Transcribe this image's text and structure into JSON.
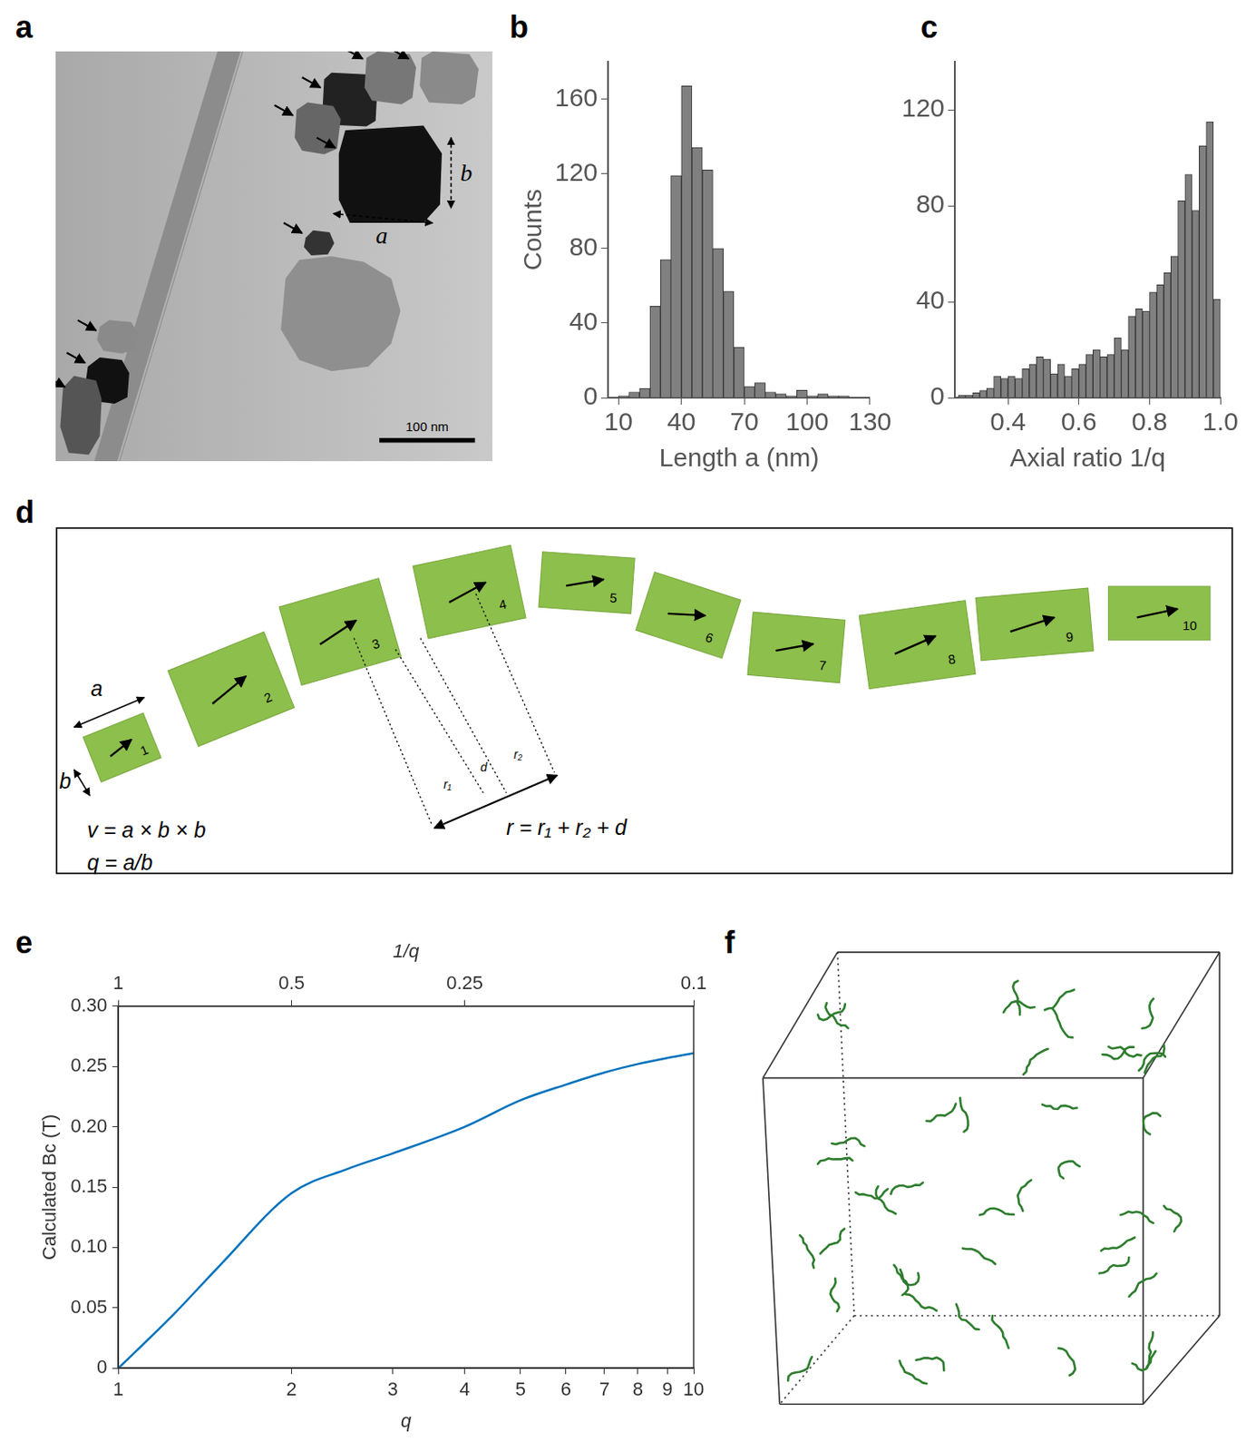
{
  "panels": {
    "a": {
      "panel_label": "a",
      "annotations": [
        "a",
        "b"
      ],
      "scale_bar": "100 nm"
    },
    "d": {
      "panel_label": "d",
      "particle_labels": [
        "1",
        "2",
        "3",
        "4",
        "5",
        "6",
        "7",
        "8",
        "9",
        "10"
      ],
      "dimension_labels": [
        "a",
        "b"
      ],
      "equations": [
        "v = a × b × b",
        "q = a/b"
      ],
      "distance_labels": [
        "r₁",
        "d",
        "r₂"
      ],
      "distance_equation": "r = r₁ + r₂ + d"
    },
    "f": {
      "panel_label": "f"
    }
  },
  "chart_data": [
    {
      "panel_label": "b",
      "type": "histogram",
      "x_label": "Length a (nm)",
      "y_label": "Counts",
      "bins": [
        10,
        15,
        20,
        25,
        30,
        35,
        40,
        45,
        50,
        55,
        60,
        65,
        70,
        75,
        80,
        85,
        90,
        95,
        100,
        105,
        110,
        115,
        120
      ],
      "counts": [
        1,
        3,
        5,
        49,
        74,
        119,
        167,
        134,
        122,
        80,
        57,
        27,
        6,
        8,
        3,
        2,
        1,
        4,
        1,
        2,
        1,
        1
      ],
      "color": "#808080",
      "xlim": [
        5,
        130
      ],
      "xticks": [
        10,
        40,
        70,
        100,
        130
      ],
      "ylim": [
        0,
        180
      ],
      "yticks": [
        0,
        40,
        80,
        120,
        160
      ],
      "grid": false
    },
    {
      "panel_label": "c",
      "type": "histogram",
      "x_label": "Axial ratio 1/q",
      "y_label": "",
      "bins": [
        0.26,
        0.28,
        0.3,
        0.32,
        0.34,
        0.36,
        0.38,
        0.4,
        0.42,
        0.44,
        0.46,
        0.48,
        0.5,
        0.52,
        0.54,
        0.56,
        0.58,
        0.6,
        0.62,
        0.64,
        0.66,
        0.68,
        0.7,
        0.72,
        0.74,
        0.76,
        0.78,
        0.8,
        0.82,
        0.84,
        0.86,
        0.88,
        0.9,
        0.92,
        0.94,
        0.96,
        0.98,
        1.0
      ],
      "counts": [
        1,
        1,
        2,
        3,
        4,
        9,
        8,
        9,
        8,
        12,
        14,
        17,
        16,
        10,
        14,
        9,
        12,
        14,
        18,
        20,
        17,
        18,
        25,
        20,
        34,
        37,
        36,
        44,
        47,
        52,
        59,
        82,
        93,
        78,
        105,
        115,
        41
      ],
      "color": "#808080",
      "xlim": [
        0.25,
        1.0
      ],
      "xticks": [
        0.4,
        0.6,
        0.8,
        {
          "value": 1,
          "label": "1.0"
        }
      ],
      "ylim": [
        0,
        140
      ],
      "yticks": [
        0,
        40,
        80,
        120
      ],
      "grid": false
    },
    {
      "panel_label": "e",
      "type": "line",
      "x_label": "q",
      "x2_label": "1/q",
      "y_label": "Calculated Bc (T)",
      "x": [
        1,
        1.25,
        1.5,
        2,
        2.5,
        3,
        4,
        5,
        6,
        7,
        8,
        9,
        10
      ],
      "values": [
        0,
        0.045,
        0.085,
        0.145,
        0.165,
        0.178,
        0.2,
        0.222,
        0.235,
        0.245,
        0.252,
        0.257,
        0.261
      ],
      "color": "#0072bd",
      "log": "x",
      "xlim": [
        1,
        10
      ],
      "xticks": [
        1,
        2,
        3,
        4,
        5,
        6,
        7,
        8,
        9,
        10
      ],
      "x2lim": [
        1,
        0.1
      ],
      "x2ticks": [
        1,
        0.5,
        0.25,
        0.1
      ],
      "ylim": [
        0,
        0.3
      ],
      "yticks": [
        0,
        0.05,
        {
          "value": 0.1,
          "label": "0.10"
        },
        0.15,
        {
          "value": 0.2,
          "label": "0.20"
        },
        0.25,
        {
          "value": 0.3,
          "label": "0.30"
        }
      ],
      "grid": false
    }
  ]
}
